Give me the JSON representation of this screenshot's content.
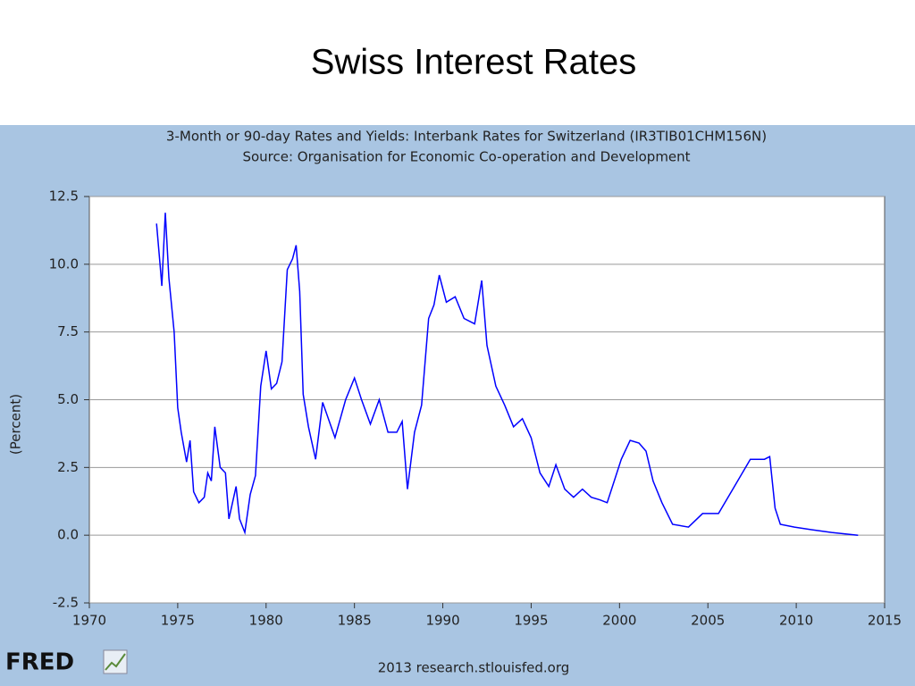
{
  "slide_title": "Swiss Interest Rates",
  "chart_data": {
    "type": "line",
    "title": "3-Month or 90-day Rates and Yields: Interbank Rates for Switzerland (IR3TIB01CHM156N)",
    "subtitle": "Source: Organisation for Economic Co-operation and Development",
    "y_label": "(Percent)",
    "footer": "2013 research.stlouisfed.org",
    "logo": "FRED",
    "color": "#0000ff",
    "grid": true,
    "xlim": [
      1970,
      2015
    ],
    "xticks": [
      1970,
      1975,
      1980,
      1985,
      1990,
      1995,
      2000,
      2005,
      2010,
      2015
    ],
    "ylim": [
      -2.5,
      12.5
    ],
    "yticks": [
      12.5,
      {
        "value": 10,
        "label": "10.0"
      },
      7.5,
      {
        "value": 5,
        "label": "5.0"
      },
      2.5,
      {
        "value": 0,
        "label": "0.0"
      },
      -2.5
    ],
    "x": [
      1973.8,
      1974.0,
      1974.1,
      1974.3,
      1974.5,
      1974.8,
      1975.0,
      1975.2,
      1975.5,
      1975.7,
      1975.9,
      1976.2,
      1976.5,
      1976.7,
      1976.9,
      1977.1,
      1977.4,
      1977.7,
      1977.9,
      1978.1,
      1978.3,
      1978.5,
      1978.8,
      1979.1,
      1979.4,
      1979.7,
      1980.0,
      1980.3,
      1980.6,
      1980.9,
      1981.2,
      1981.5,
      1981.7,
      1981.9,
      1982.1,
      1982.4,
      1982.8,
      1983.2,
      1983.9,
      1984.5,
      1985.0,
      1985.4,
      1985.9,
      1986.4,
      1986.9,
      1987.4,
      1987.7,
      1988.0,
      1988.4,
      1988.8,
      1989.2,
      1989.5,
      1989.8,
      1990.2,
      1990.7,
      1991.2,
      1991.8,
      1992.2,
      1992.5,
      1993.0,
      1993.5,
      1994.0,
      1994.5,
      1995.0,
      1995.5,
      1996.0,
      1996.4,
      1996.9,
      1997.4,
      1997.9,
      1998.4,
      1998.9,
      1999.3,
      1999.7,
      2000.1,
      2000.6,
      2001.1,
      2001.5,
      2001.9,
      2002.4,
      2003.0,
      2003.9,
      2004.7,
      2005.6,
      2006.5,
      2007.4,
      2008.2,
      2008.5,
      2008.8,
      2009.1,
      2009.9,
      2010.9,
      2012.0,
      2013.5
    ],
    "values": [
      11.5,
      10.0,
      9.2,
      11.9,
      9.5,
      7.5,
      4.7,
      3.8,
      2.7,
      3.5,
      1.6,
      1.2,
      1.4,
      2.3,
      2.0,
      4.0,
      2.5,
      2.3,
      0.6,
      1.2,
      1.8,
      0.6,
      0.1,
      1.5,
      2.2,
      5.5,
      6.8,
      5.4,
      5.6,
      6.4,
      9.8,
      10.2,
      10.7,
      9.0,
      5.2,
      4.0,
      2.8,
      4.9,
      3.6,
      5.0,
      5.8,
      5.0,
      4.1,
      5.0,
      3.8,
      3.8,
      4.2,
      1.7,
      3.8,
      4.8,
      8.0,
      8.5,
      9.6,
      8.6,
      8.8,
      8.0,
      7.8,
      9.4,
      7.0,
      5.5,
      4.8,
      4.0,
      4.3,
      3.6,
      2.3,
      1.8,
      2.6,
      1.7,
      1.4,
      1.7,
      1.4,
      1.3,
      1.2,
      2.0,
      2.8,
      3.5,
      3.4,
      3.1,
      2.0,
      1.2,
      0.4,
      0.3,
      0.8,
      0.8,
      1.8,
      2.8,
      2.8,
      2.9,
      1.0,
      0.4,
      0.3,
      0.2,
      0.1,
      0.0
    ]
  }
}
